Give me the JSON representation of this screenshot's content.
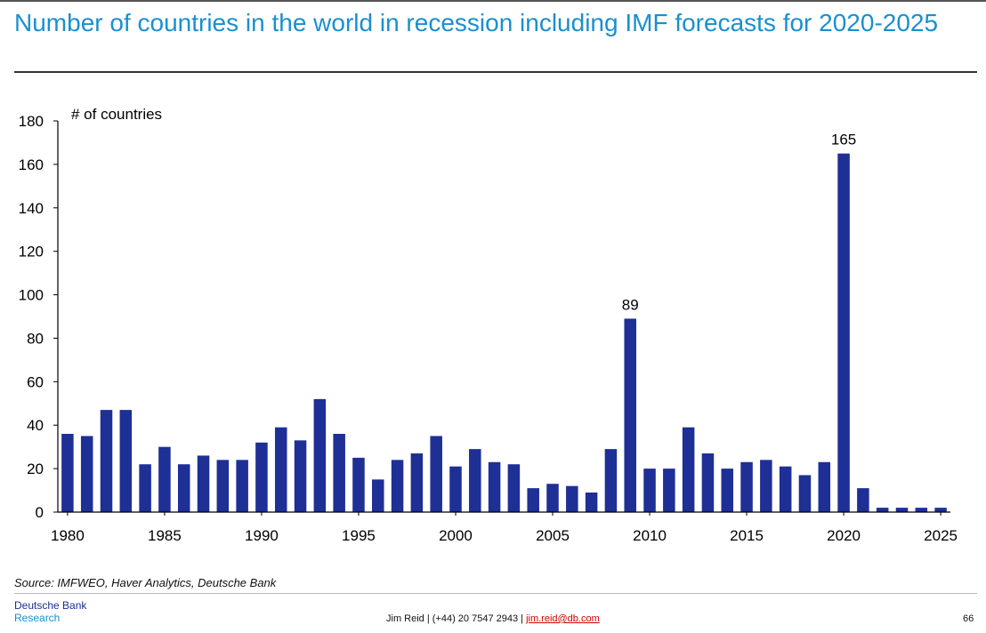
{
  "header": {
    "title": "Number of countries in the world in recession including IMF forecasts for 2020-2025"
  },
  "chart_data": {
    "type": "bar",
    "title": "",
    "ylabel": "# of countries",
    "xlabel": "",
    "ylim": [
      0,
      180
    ],
    "yticks": [
      0,
      20,
      40,
      60,
      80,
      100,
      120,
      140,
      160,
      180
    ],
    "xtick_labels": [
      "1980",
      "1985",
      "1990",
      "1995",
      "2000",
      "2005",
      "2010",
      "2015",
      "2020",
      "2025"
    ],
    "categories": [
      "1980",
      "1981",
      "1982",
      "1983",
      "1984",
      "1985",
      "1986",
      "1987",
      "1988",
      "1989",
      "1990",
      "1991",
      "1992",
      "1993",
      "1994",
      "1995",
      "1996",
      "1997",
      "1998",
      "1999",
      "2000",
      "2001",
      "2002",
      "2003",
      "2004",
      "2005",
      "2006",
      "2007",
      "2008",
      "2009",
      "2010",
      "2011",
      "2012",
      "2013",
      "2014",
      "2015",
      "2016",
      "2017",
      "2018",
      "2019",
      "2020",
      "2021",
      "2022",
      "2023",
      "2024",
      "2025"
    ],
    "values": [
      36,
      35,
      47,
      47,
      22,
      30,
      22,
      26,
      24,
      24,
      32,
      39,
      33,
      52,
      36,
      25,
      15,
      24,
      27,
      35,
      21,
      29,
      23,
      22,
      11,
      13,
      12,
      9,
      29,
      89,
      20,
      20,
      39,
      27,
      20,
      23,
      24,
      21,
      17,
      23,
      165,
      11,
      2,
      2,
      2,
      2
    ],
    "data_labels": [
      {
        "category": "2009",
        "text": "89"
      },
      {
        "category": "2020",
        "text": "165"
      }
    ],
    "bar_color": "#1e2f96",
    "grid": false,
    "legend": "none"
  },
  "footer": {
    "source": "Source: IMFWEO, Haver Analytics, Deutsche Bank",
    "brand_line1": "Deutsche Bank",
    "brand_line2": "Research",
    "contact_prefix": "Jim Reid | (+44) 20 7547 2943 | ",
    "contact_email": "jim.reid@db.com",
    "page_number": "66"
  },
  "colors": {
    "title": "#1a8fd0",
    "bars": "#1e2f96",
    "brand_dark": "#1f2f8f",
    "brand_light": "#1a8fd0",
    "email": "#cc0000"
  }
}
